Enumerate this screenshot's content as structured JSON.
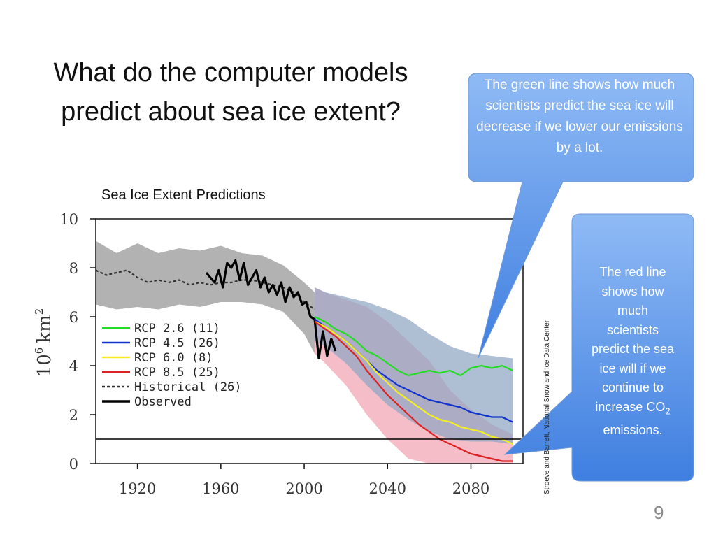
{
  "slide": {
    "title_line1": "What do the computer models",
    "title_line2": "predict about sea ice extent?",
    "chart_caption": "Sea Ice Extent Predictions",
    "page_number": "9",
    "credit": "Stroeve and Barrett, National Snow and Ice Data Center"
  },
  "callouts": {
    "green_text": "The green line shows how much scientists predict the sea ice will decrease if we lower our emissions by a lot.",
    "red_text_line1": "The red line",
    "red_text_line2": "shows how",
    "red_text_line3": "much",
    "red_text_line4": "scientists",
    "red_text_line5": "predict the sea",
    "red_text_line6": "ice will if we",
    "red_text_line7": "continue to",
    "red_text_line8": "increase CO",
    "red_text_sub": "2",
    "red_text_line9": "emissions.",
    "fill_color": "#5b95e6"
  },
  "chart_data": {
    "type": "line",
    "title": "Sea Ice Extent Predictions",
    "xlabel": "",
    "ylabel": "10^6 km^2",
    "ylabel_base": "10",
    "ylabel_exp": "6",
    "ylabel_unit": "km",
    "ylabel_unit_exp": "2",
    "xlim": [
      1900,
      2105
    ],
    "ylim": [
      0,
      10
    ],
    "x_ticks": [
      1920,
      1960,
      2000,
      2040,
      2080
    ],
    "y_ticks": [
      0,
      2,
      4,
      6,
      8,
      10
    ],
    "reference_line": 1,
    "legend_position": "left",
    "legend": [
      {
        "label": "RCP 2.6 (11)",
        "color": "#22dd22",
        "style": "solid"
      },
      {
        "label": "RCP 4.5 (26)",
        "color": "#1133cc",
        "style": "solid"
      },
      {
        "label": "RCP 6.0 (8)",
        "color": "#f5ee22",
        "style": "solid"
      },
      {
        "label": "RCP 8.5 (25)",
        "color": "#dd2222",
        "style": "solid"
      },
      {
        "label": "Historical (26)",
        "color": "#333333",
        "style": "dashed"
      },
      {
        "label": "Observed",
        "color": "#000000",
        "style": "solid"
      }
    ],
    "bands": [
      {
        "name": "Historical range",
        "color": "#aaaaaa",
        "x": [
          1900,
          1910,
          1920,
          1930,
          1940,
          1950,
          1960,
          1970,
          1980,
          1990,
          2000,
          2005
        ],
        "lo": [
          6.5,
          6.3,
          6.4,
          6.3,
          6.5,
          6.4,
          6.6,
          6.6,
          6.5,
          6.2,
          5.3,
          4.5
        ],
        "hi": [
          9.1,
          8.6,
          9.0,
          8.6,
          8.8,
          8.7,
          8.9,
          8.6,
          8.5,
          8.1,
          7.4,
          7.0
        ]
      },
      {
        "name": "RCP 8.5 range",
        "color": "#f4b6c2",
        "x": [
          2005,
          2010,
          2020,
          2030,
          2040,
          2050,
          2060,
          2070,
          2080,
          2090,
          2100
        ],
        "lo": [
          4.5,
          4.1,
          3.2,
          2.0,
          1.0,
          0.2,
          0.0,
          0.0,
          0.0,
          0.0,
          0.0
        ],
        "hi": [
          7.2,
          7.0,
          6.7,
          6.4,
          5.8,
          5.0,
          4.2,
          3.0,
          2.2,
          1.6,
          1.2
        ]
      },
      {
        "name": "RCP 2.6 range",
        "color": "#93a8c4",
        "x": [
          2005,
          2010,
          2020,
          2030,
          2040,
          2050,
          2060,
          2070,
          2080,
          2090,
          2100
        ],
        "lo": [
          5.0,
          4.8,
          4.1,
          3.2,
          2.4,
          1.8,
          1.3,
          1.0,
          0.9,
          0.9,
          0.8
        ],
        "hi": [
          7.2,
          7.0,
          6.8,
          6.6,
          6.3,
          5.9,
          5.3,
          4.8,
          4.5,
          4.4,
          4.3
        ]
      }
    ],
    "series": [
      {
        "name": "Historical (26)",
        "color": "#333333",
        "dashed": true,
        "x": [
          1900,
          1905,
          1910,
          1915,
          1920,
          1925,
          1930,
          1935,
          1940,
          1945,
          1950,
          1955,
          1960,
          1965,
          1970,
          1975,
          1980,
          1985,
          1990,
          1995,
          2000,
          2005
        ],
        "values": [
          7.9,
          7.7,
          7.8,
          7.9,
          7.6,
          7.4,
          7.5,
          7.4,
          7.5,
          7.3,
          7.4,
          7.3,
          7.4,
          7.4,
          7.5,
          7.5,
          7.4,
          7.3,
          7.2,
          7.0,
          6.6,
          6.3
        ]
      },
      {
        "name": "Observed",
        "color": "#000000",
        "dashed": false,
        "x": [
          1953,
          1955,
          1957,
          1959,
          1961,
          1963,
          1965,
          1967,
          1969,
          1971,
          1973,
          1975,
          1977,
          1979,
          1981,
          1983,
          1985,
          1987,
          1989,
          1991,
          1993,
          1995,
          1997,
          1999,
          2001,
          2003,
          2005,
          2007,
          2009,
          2011,
          2013,
          2015
        ],
        "values": [
          7.8,
          7.6,
          7.4,
          7.9,
          7.2,
          8.2,
          8.0,
          8.3,
          7.5,
          8.2,
          7.3,
          7.6,
          7.9,
          7.2,
          7.6,
          7.0,
          7.3,
          6.9,
          7.4,
          6.6,
          7.2,
          6.8,
          7.0,
          6.5,
          6.6,
          6.0,
          5.9,
          4.3,
          5.4,
          4.4,
          5.1,
          4.6
        ]
      },
      {
        "name": "RCP 2.6 (11)",
        "color": "#22dd22",
        "dashed": false,
        "x": [
          2005,
          2010,
          2015,
          2020,
          2025,
          2030,
          2035,
          2040,
          2045,
          2050,
          2055,
          2060,
          2065,
          2070,
          2075,
          2080,
          2085,
          2090,
          2095,
          2100
        ],
        "values": [
          6.0,
          5.8,
          5.5,
          5.3,
          5.0,
          4.6,
          4.4,
          4.1,
          3.8,
          3.6,
          3.7,
          3.8,
          3.7,
          3.8,
          3.6,
          3.9,
          4.0,
          3.9,
          4.0,
          3.8
        ]
      },
      {
        "name": "RCP 4.5 (26)",
        "color": "#1133cc",
        "dashed": false,
        "x": [
          2005,
          2010,
          2015,
          2020,
          2025,
          2030,
          2035,
          2040,
          2045,
          2050,
          2055,
          2060,
          2065,
          2070,
          2075,
          2080,
          2085,
          2090,
          2095,
          2100
        ],
        "values": [
          5.9,
          5.6,
          5.3,
          5.0,
          4.6,
          4.2,
          3.8,
          3.5,
          3.2,
          3.0,
          2.8,
          2.6,
          2.5,
          2.4,
          2.3,
          2.1,
          2.0,
          1.9,
          1.9,
          1.7
        ]
      },
      {
        "name": "RCP 6.0 (8)",
        "color": "#f5ee22",
        "dashed": false,
        "x": [
          2005,
          2010,
          2015,
          2020,
          2025,
          2030,
          2035,
          2040,
          2045,
          2050,
          2055,
          2060,
          2065,
          2070,
          2075,
          2080,
          2085,
          2090,
          2095,
          2100
        ],
        "values": [
          5.8,
          5.6,
          5.3,
          5.0,
          4.6,
          4.2,
          3.7,
          3.3,
          2.9,
          2.6,
          2.3,
          2.0,
          1.8,
          1.7,
          1.5,
          1.4,
          1.3,
          1.1,
          1.0,
          0.8
        ]
      },
      {
        "name": "RCP 8.5 (25)",
        "color": "#dd2222",
        "dashed": false,
        "x": [
          2005,
          2010,
          2015,
          2020,
          2025,
          2030,
          2035,
          2040,
          2045,
          2050,
          2055,
          2060,
          2065,
          2070,
          2075,
          2080,
          2085,
          2090,
          2095,
          2100
        ],
        "values": [
          5.8,
          5.5,
          5.2,
          4.8,
          4.4,
          3.8,
          3.3,
          2.8,
          2.4,
          2.0,
          1.6,
          1.3,
          1.0,
          0.8,
          0.6,
          0.4,
          0.3,
          0.2,
          0.1,
          0.1
        ]
      }
    ]
  }
}
